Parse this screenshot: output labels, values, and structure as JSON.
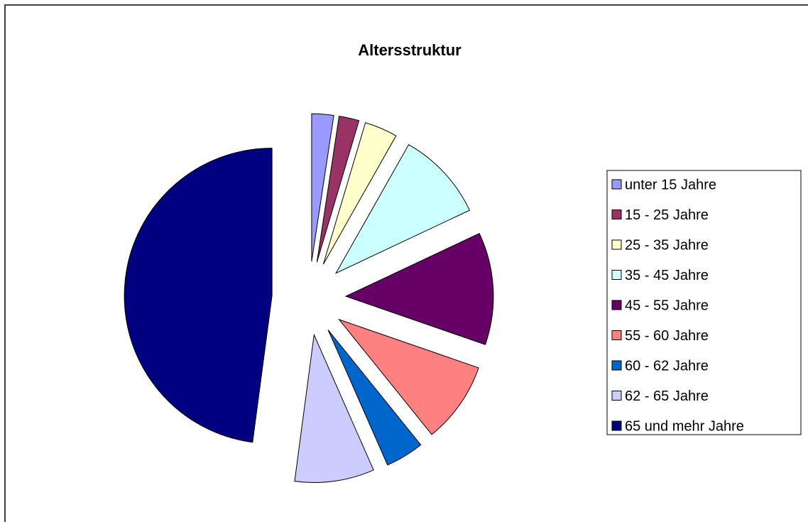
{
  "chart_data": {
    "type": "pie",
    "title": "Altersstruktur",
    "categories": [
      "unter 15 Jahre",
      "15 - 25 Jahre",
      "25 - 35 Jahre",
      "35 - 45 Jahre",
      "45 - 55 Jahre",
      "55 - 60 Jahre",
      "60 - 62 Jahre",
      "62 - 65 Jahre",
      "65 und mehr Jahre"
    ],
    "values": [
      2.4,
      2.2,
      3.6,
      9.8,
      12.3,
      8.9,
      4.2,
      8.7,
      47.9
    ],
    "colors": [
      "#9999ff",
      "#993366",
      "#ffffcc",
      "#ccffff",
      "#660066",
      "#ff8080",
      "#0066cc",
      "#ccccff",
      "#000080"
    ],
    "exploded": true,
    "legend": "right"
  }
}
